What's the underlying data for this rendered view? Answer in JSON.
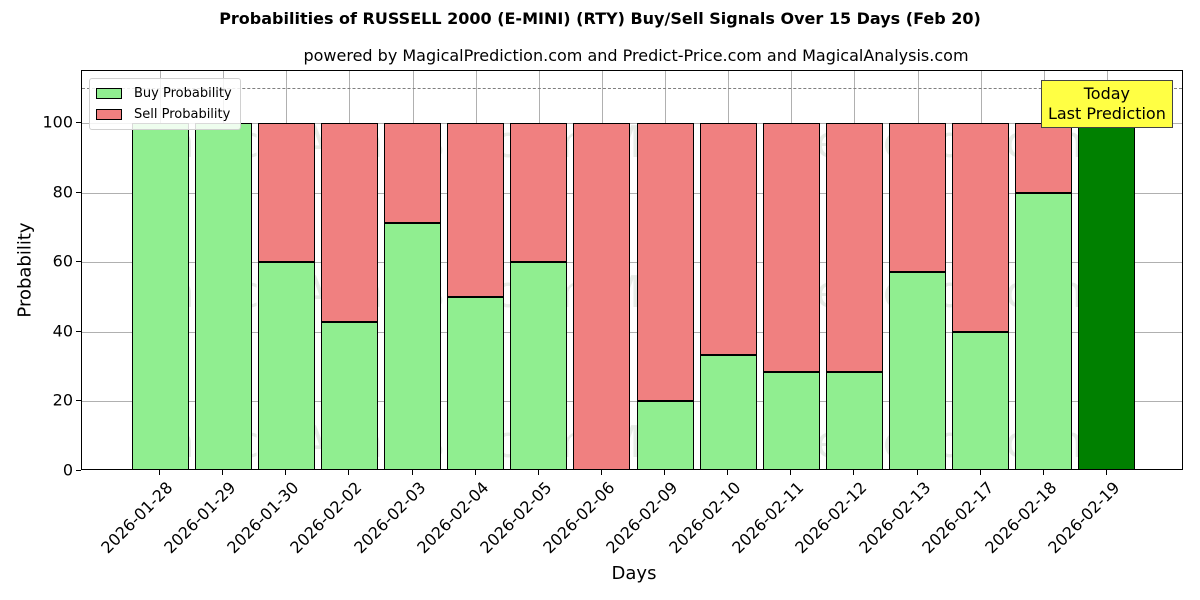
{
  "chart_data": {
    "type": "bar",
    "stacked": true,
    "title": "Probabilities of RUSSELL 2000 (E-MINI) (RTY) Buy/Sell Signals Over 15 Days (Feb 20)",
    "subtitle": "powered by MagicalPrediction.com and Predict-Price.com and MagicalAnalysis.com",
    "xlabel": "Days",
    "ylabel": "Probability",
    "ylim": [
      0,
      115
    ],
    "yticks": [
      0,
      20,
      40,
      60,
      80,
      100
    ],
    "grid": true,
    "legend_position": "upper left",
    "categories": [
      "2026-01-28",
      "2026-01-29",
      "2026-01-30",
      "2026-02-02",
      "2026-02-03",
      "2026-02-04",
      "2026-02-05",
      "2026-02-06",
      "2026-02-09",
      "2026-02-10",
      "2026-02-11",
      "2026-02-12",
      "2026-02-13",
      "2026-02-17",
      "2026-02-18",
      "2026-02-19"
    ],
    "series": [
      {
        "name": "Buy Probability",
        "color": "#90ee90",
        "values": [
          100,
          100,
          60,
          42.9,
          71.4,
          50,
          60,
          0,
          20,
          33.3,
          28.6,
          28.6,
          57.1,
          40,
          80,
          100
        ]
      },
      {
        "name": "Sell Probability",
        "color": "#f08080",
        "values": [
          0,
          0,
          40,
          57.1,
          28.6,
          50,
          40,
          100,
          80,
          66.7,
          71.4,
          71.4,
          42.9,
          60,
          20,
          0
        ]
      }
    ],
    "highlight": {
      "category": "2026-02-19",
      "color": "#008000",
      "annotation": "Today\nLast Prediction"
    },
    "reference_line": {
      "y": 110,
      "style": "dashed",
      "color": "#808080"
    },
    "watermarks": [
      "MagicalAnalysis.com",
      "MagicalPrediction.com"
    ]
  },
  "labels": {
    "title": "Probabilities of RUSSELL 2000 (E-MINI) (RTY) Buy/Sell Signals Over 15 Days (Feb 20)",
    "subtitle": "powered by MagicalPrediction.com and Predict-Price.com and MagicalAnalysis.com",
    "xlabel": "Days",
    "ylabel": "Probability",
    "legend_buy": "Buy Probability",
    "legend_sell": "Sell Probability",
    "annot_line1": "Today",
    "annot_line2": "Last Prediction",
    "watermark_left": "MagicalAnalysis.com",
    "watermark_right": "MagicalPrediction.com"
  }
}
